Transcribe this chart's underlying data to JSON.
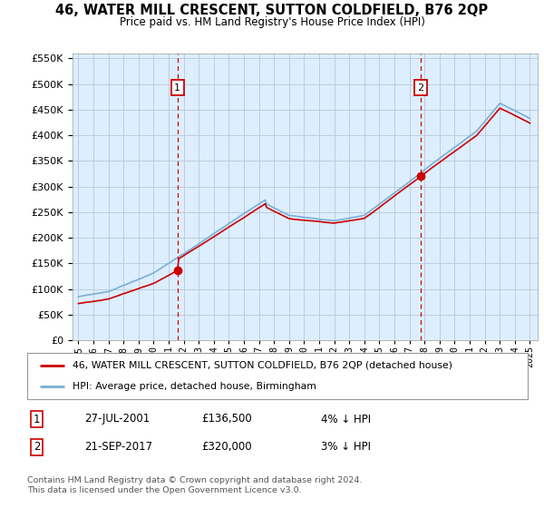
{
  "title": "46, WATER MILL CRESCENT, SUTTON COLDFIELD, B76 2QP",
  "subtitle": "Price paid vs. HM Land Registry's House Price Index (HPI)",
  "legend_line1": "46, WATER MILL CRESCENT, SUTTON COLDFIELD, B76 2QP (detached house)",
  "legend_line2": "HPI: Average price, detached house, Birmingham",
  "annotation1": {
    "num": "1",
    "date": "27-JUL-2001",
    "price": "£136,500",
    "hpi": "4% ↓ HPI"
  },
  "annotation2": {
    "num": "2",
    "date": "21-SEP-2017",
    "price": "£320,000",
    "hpi": "3% ↓ HPI"
  },
  "footer": "Contains HM Land Registry data © Crown copyright and database right 2024.\nThis data is licensed under the Open Government Licence v3.0.",
  "hpi_color": "#7ab0d4",
  "price_color": "#cc0000",
  "chart_bg": "#ddeeff",
  "marker1_x": 2001.58,
  "marker1_y": 136500,
  "marker2_x": 2017.72,
  "marker2_y": 320000,
  "ylim": [
    0,
    560000
  ],
  "xlim": [
    1994.6,
    2025.5
  ],
  "background_color": "#ffffff",
  "grid_color": "#bbccdd"
}
